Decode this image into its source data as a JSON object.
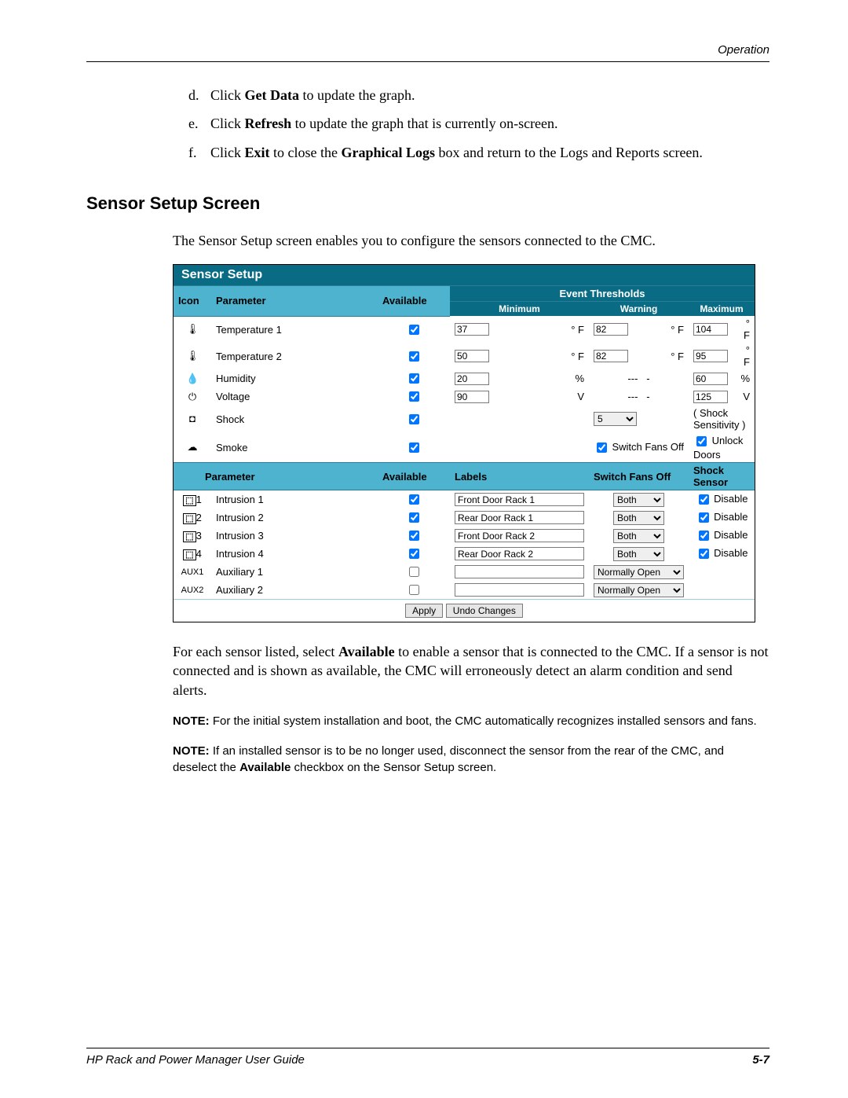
{
  "header": {
    "operation": "Operation"
  },
  "instructions": [
    {
      "letter": "d.",
      "line": "Click <b>Get Data</b> to update the graph."
    },
    {
      "letter": "e.",
      "line": "Click <b>Refresh</b> to update the graph that is currently on-screen."
    },
    {
      "letter": "f.",
      "line": "Click <b>Exit</b> to close the <b>Graphical Logs</b> box and return to the Logs and Reports screen."
    }
  ],
  "section_title": "Sensor Setup Screen",
  "intro": "The Sensor Setup screen enables you to configure the sensors connected to the CMC.",
  "panel": {
    "title": "Sensor Setup",
    "head": {
      "icon": "Icon",
      "param": "Parameter",
      "avail": "Available",
      "thresh": "Event Thresholds",
      "min": "Minimum",
      "warn": "Warning",
      "max": "Maximum"
    },
    "sensors": [
      {
        "icon": "temp1",
        "name": "Temperature 1",
        "avail": true,
        "min": "37",
        "minu": "° F",
        "warn": "82",
        "warnu": "° F",
        "max": "104",
        "maxu": "° F"
      },
      {
        "icon": "temp2",
        "name": "Temperature 2",
        "avail": true,
        "min": "50",
        "minu": "° F",
        "warn": "82",
        "warnu": "° F",
        "max": "95",
        "maxu": "° F"
      },
      {
        "icon": "hum",
        "name": "Humidity",
        "avail": true,
        "min": "20",
        "minu": "%",
        "warn": "---",
        "warnu": "-",
        "max": "60",
        "maxu": "%"
      },
      {
        "icon": "volt",
        "name": "Voltage",
        "avail": true,
        "min": "90",
        "minu": "V",
        "warn": "---",
        "warnu": "-",
        "max": "125",
        "maxu": "V"
      }
    ],
    "shock": {
      "name": "Shock",
      "avail": true,
      "sens": "5",
      "label": "( Shock Sensitivity )"
    },
    "smoke": {
      "name": "Smoke",
      "avail": true,
      "fans": "Switch Fans Off",
      "fans_chk": true,
      "unlock": "Unlock Doors",
      "unlock_chk": true
    },
    "head2": {
      "param": "Parameter",
      "avail": "Available",
      "labels": "Labels",
      "sfo": "Switch Fans Off",
      "ss": "Shock Sensor"
    },
    "intrusions": [
      {
        "idx": "1",
        "name": "Intrusion 1",
        "avail": true,
        "label": "Front Door Rack 1",
        "sfo": "Both",
        "ss": true,
        "ssl": "Disable"
      },
      {
        "idx": "2",
        "name": "Intrusion 2",
        "avail": true,
        "label": "Rear Door Rack 1",
        "sfo": "Both",
        "ss": true,
        "ssl": "Disable"
      },
      {
        "idx": "3",
        "name": "Intrusion 3",
        "avail": true,
        "label": "Front Door Rack 2",
        "sfo": "Both",
        "ss": true,
        "ssl": "Disable"
      },
      {
        "idx": "4",
        "name": "Intrusion 4",
        "avail": true,
        "label": "Rear Door Rack 2",
        "sfo": "Both",
        "ss": true,
        "ssl": "Disable"
      }
    ],
    "aux": [
      {
        "code": "AUX1",
        "name": "Auxiliary 1",
        "avail": false,
        "label": "",
        "sfo": "Normally Open"
      },
      {
        "code": "AUX2",
        "name": "Auxiliary 2",
        "avail": false,
        "label": "",
        "sfo": "Normally Open"
      }
    ],
    "buttons": {
      "apply": "Apply",
      "undo": "Undo Changes"
    }
  },
  "after": "For each sensor listed, select <b>Available</b> to enable a sensor that is connected to the CMC. If a sensor is not connected and is shown as available, the CMC will erroneously detect an alarm condition and send alerts.",
  "note1": "<b>NOTE:</b> For the initial system installation and boot, the CMC automatically recognizes installed sensors and fans.",
  "note2": "<b>NOTE:</b> If an installed sensor is to be no longer used, disconnect the sensor from the rear of the CMC, and deselect the <b>Available</b> checkbox on the Sensor Setup screen.",
  "footer": {
    "left": "HP Rack and Power Manager User Guide",
    "right": "5-7"
  }
}
